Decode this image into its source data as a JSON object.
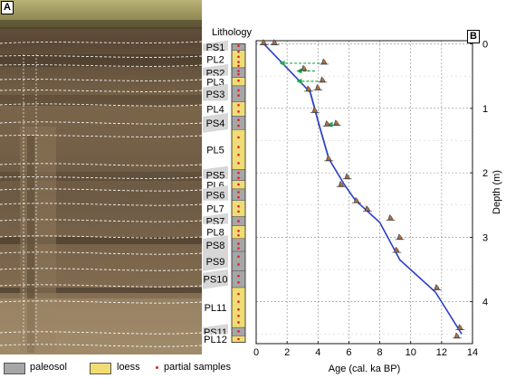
{
  "panels": {
    "a": "A",
    "b": "B"
  },
  "lithology_title": "Lithology",
  "units": [
    {
      "label": "PS1",
      "type": "paleosol",
      "top": 0.0,
      "bottom": 0.1
    },
    {
      "label": "PL2",
      "type": "loess",
      "top": 0.1,
      "bottom": 0.37
    },
    {
      "label": "PS2",
      "type": "paleosol",
      "top": 0.37,
      "bottom": 0.52
    },
    {
      "label": "PL3",
      "type": "loess",
      "top": 0.52,
      "bottom": 0.65
    },
    {
      "label": "PS3",
      "type": "paleosol",
      "top": 0.65,
      "bottom": 0.9
    },
    {
      "label": "PL4",
      "type": "loess",
      "top": 0.9,
      "bottom": 1.12
    },
    {
      "label": "PS4",
      "type": "paleosol",
      "top": 1.12,
      "bottom": 1.33
    },
    {
      "label": "PL5",
      "type": "loess",
      "top": 1.33,
      "bottom": 1.95
    },
    {
      "label": "PS5",
      "type": "paleosol",
      "top": 1.95,
      "bottom": 2.12
    },
    {
      "label": "PL6",
      "type": "loess",
      "top": 2.12,
      "bottom": 2.25
    },
    {
      "label": "PS6",
      "type": "paleosol",
      "top": 2.25,
      "bottom": 2.43
    },
    {
      "label": "PL7",
      "type": "loess",
      "top": 2.43,
      "bottom": 2.68
    },
    {
      "label": "PS7",
      "type": "paleosol",
      "top": 2.68,
      "bottom": 2.82
    },
    {
      "label": "PL8",
      "type": "loess",
      "top": 2.82,
      "bottom": 3.02
    },
    {
      "label": "PS8",
      "type": "paleosol",
      "top": 3.02,
      "bottom": 3.22
    },
    {
      "label": "PS9",
      "type": "paleosol",
      "top": 3.22,
      "bottom": 3.52
    },
    {
      "label": "PS10",
      "type": "paleosol",
      "top": 3.52,
      "bottom": 3.78
    },
    {
      "label": "PL11",
      "type": "loess",
      "top": 3.78,
      "bottom": 4.4
    },
    {
      "label": "PS11",
      "type": "paleosol",
      "top": 4.4,
      "bottom": 4.53
    },
    {
      "label": "PL12",
      "type": "loess",
      "top": 4.53,
      "bottom": 4.63
    }
  ],
  "sample_depths": [
    0.03,
    0.12,
    0.2,
    0.28,
    0.34,
    0.42,
    0.47,
    0.57,
    0.72,
    0.8,
    0.95,
    1.05,
    1.18,
    1.27,
    1.45,
    1.6,
    1.72,
    1.85,
    2.0,
    2.08,
    2.18,
    2.3,
    2.38,
    2.52,
    2.6,
    2.75,
    2.9,
    2.97,
    3.1,
    3.17,
    3.3,
    3.42,
    3.6,
    3.7,
    3.88,
    4.0,
    4.12,
    4.22,
    4.32,
    4.46,
    4.58
  ],
  "legend": {
    "paleosol": "paleosol",
    "loess": "loess",
    "samples": "partial samples"
  },
  "colors": {
    "paleosol": "#a6a6a6",
    "loess": "#f0dc74",
    "sample_dot": "#dd1f2b",
    "line": "#2d3fc4",
    "band": "#5c74f0",
    "arrow": "#1ea84a",
    "hatch": "#d7d7d7"
  },
  "chart_data": {
    "type": "line",
    "title": "",
    "xlabel": "Age (cal. ka BP)",
    "ylabel": "Depth (m)",
    "xlim": [
      0,
      14
    ],
    "ylim": [
      4.65,
      -0.05
    ],
    "xticks": [
      0,
      2,
      4,
      6,
      8,
      10,
      12,
      14
    ],
    "yticks": [
      0,
      1,
      2,
      3,
      4
    ],
    "grid": true,
    "series": [
      {
        "x": [
          0.5,
          3.5,
          4.1,
          4.7,
          5.7,
          6.4,
          8.0,
          9.3,
          11.6,
          13.3
        ],
        "y": [
          0.0,
          0.75,
          1.28,
          1.78,
          2.18,
          2.42,
          2.77,
          3.35,
          3.85,
          4.5
        ]
      }
    ],
    "dated_samples": [
      {
        "x": 0.5,
        "y": 0.0
      },
      {
        "x": 1.2,
        "y": 0.0
      },
      {
        "x": 3.1,
        "y": 0.4
      },
      {
        "x": 4.4,
        "y": 0.3
      },
      {
        "x": 4.3,
        "y": 0.58
      },
      {
        "x": 3.4,
        "y": 0.72
      },
      {
        "x": 4.0,
        "y": 0.7
      },
      {
        "x": 3.8,
        "y": 1.05
      },
      {
        "x": 4.6,
        "y": 1.26
      },
      {
        "x": 5.2,
        "y": 1.25
      },
      {
        "x": 4.7,
        "y": 1.8
      },
      {
        "x": 5.9,
        "y": 2.08
      },
      {
        "x": 5.5,
        "y": 2.2
      },
      {
        "x": 6.5,
        "y": 2.45
      },
      {
        "x": 7.2,
        "y": 2.58
      },
      {
        "x": 8.7,
        "y": 2.72
      },
      {
        "x": 9.3,
        "y": 3.02
      },
      {
        "x": 9.1,
        "y": 3.22
      },
      {
        "x": 11.7,
        "y": 3.8
      },
      {
        "x": 13.2,
        "y": 4.42
      },
      {
        "x": 13.0,
        "y": 4.55
      }
    ],
    "reversals": [
      {
        "from_x": 4.4,
        "to_x": 1.5,
        "y": 0.3
      },
      {
        "from_x": 3.8,
        "to_x": 2.6,
        "y": 0.42
      },
      {
        "from_x": 4.3,
        "to_x": 2.6,
        "y": 0.58
      },
      {
        "from_x": 5.2,
        "to_x": 4.6,
        "y": 1.25
      }
    ]
  }
}
